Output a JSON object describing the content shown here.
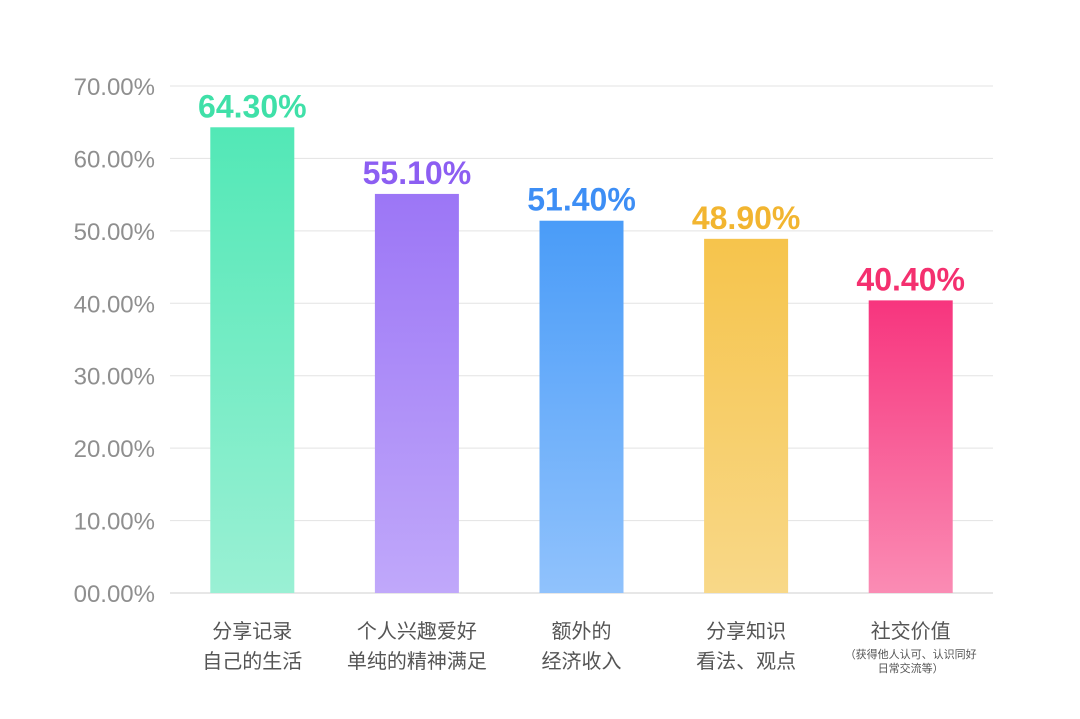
{
  "chart_data": {
    "type": "bar",
    "title": "",
    "xlabel": "",
    "ylabel": "",
    "ylim": [
      0,
      70
    ],
    "yticks": [
      0,
      10,
      20,
      30,
      40,
      50,
      60,
      70
    ],
    "ytick_labels": [
      "00.00%",
      "10.00%",
      "20.00%",
      "30.00%",
      "40.00%",
      "50.00%",
      "60.00%",
      "70.00%"
    ],
    "grid": true,
    "categories": [
      {
        "lines": [
          "分享记录",
          "自己的生活"
        ],
        "note": []
      },
      {
        "lines": [
          "个人兴趣爱好",
          "单纯的精神满足"
        ],
        "note": []
      },
      {
        "lines": [
          "额外的",
          "经济收入"
        ],
        "note": []
      },
      {
        "lines": [
          "分享知识",
          "看法、观点"
        ],
        "note": []
      },
      {
        "lines": [
          "社交价值"
        ],
        "note": [
          "（获得他人认可、认识同好",
          "日常交流等）"
        ]
      }
    ],
    "values": [
      64.3,
      55.1,
      51.4,
      48.9,
      40.4
    ],
    "value_labels": [
      "64.30%",
      "55.10%",
      "51.40%",
      "48.90%",
      "40.40%"
    ],
    "colors": [
      {
        "top": "#52e8b6",
        "bottom": "#9af0d4",
        "label": "#3fe0a8"
      },
      {
        "top": "#9c76f6",
        "bottom": "#c0a8fa",
        "label": "#8c5ef2"
      },
      {
        "top": "#4a9cf8",
        "bottom": "#90c2fc",
        "label": "#3d8ef5"
      },
      {
        "top": "#f6c44c",
        "bottom": "#f8d888",
        "label": "#f2b530"
      },
      {
        "top": "#f7357e",
        "bottom": "#fa8cb4",
        "label": "#f4306f"
      }
    ]
  }
}
